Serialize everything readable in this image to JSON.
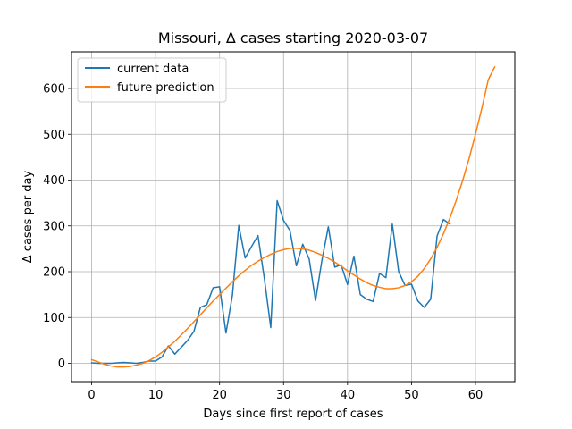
{
  "chart_data": {
    "type": "line",
    "title": "Missouri, Δ cases starting 2020-03-07",
    "xlabel": "Days since first report of cases",
    "ylabel": "Δ cases per day",
    "xlim": [
      -3.15,
      66.15
    ],
    "ylim": [
      -40,
      680
    ],
    "xticks": [
      0,
      10,
      20,
      30,
      40,
      50,
      60
    ],
    "yticks": [
      0,
      100,
      200,
      300,
      400,
      500,
      600
    ],
    "grid": true,
    "legend": {
      "placement": "top-left",
      "entries": [
        "current data",
        "future prediction"
      ]
    },
    "series": [
      {
        "name": "current data",
        "color": "#1f77b4",
        "x": [
          0,
          1,
          2,
          3,
          4,
          5,
          6,
          7,
          8,
          9,
          10,
          11,
          12,
          13,
          14,
          15,
          16,
          17,
          18,
          19,
          20,
          21,
          22,
          23,
          24,
          25,
          26,
          27,
          28,
          29,
          30,
          31,
          32,
          33,
          34,
          35,
          36,
          37,
          38,
          39,
          40,
          41,
          42,
          43,
          44,
          45,
          46,
          47,
          48,
          49,
          50,
          51,
          52,
          53,
          54,
          55,
          56
        ],
        "y": [
          1,
          0,
          0,
          0,
          1,
          2,
          1,
          0,
          2,
          5,
          5,
          14,
          38,
          20,
          35,
          50,
          70,
          122,
          128,
          165,
          167,
          66,
          148,
          301,
          230,
          255,
          279,
          185,
          78,
          355,
          312,
          290,
          213,
          260,
          228,
          137,
          225,
          298,
          210,
          215,
          172,
          234,
          150,
          140,
          135,
          196,
          187,
          304,
          200,
          170,
          173,
          136,
          122,
          140,
          278,
          314,
          304
        ]
      },
      {
        "name": "future prediction",
        "color": "#ff7f0e",
        "x": [
          0,
          1,
          2,
          3,
          4,
          5,
          6,
          7,
          8,
          9,
          10,
          11,
          12,
          13,
          14,
          15,
          16,
          17,
          18,
          19,
          20,
          21,
          22,
          23,
          24,
          25,
          26,
          27,
          28,
          29,
          30,
          31,
          32,
          33,
          34,
          35,
          36,
          37,
          38,
          39,
          40,
          41,
          42,
          43,
          44,
          45,
          46,
          47,
          48,
          49,
          50,
          51,
          52,
          53,
          54,
          55,
          56,
          57,
          58,
          59,
          60,
          61,
          62,
          63
        ],
        "y": [
          8,
          3,
          -2,
          -6,
          -8,
          -8,
          -7,
          -4,
          0,
          6,
          14,
          24,
          36,
          48,
          62,
          76,
          91,
          106,
          121,
          136,
          150,
          164,
          178,
          191,
          203,
          214,
          223,
          231,
          238,
          244,
          248,
          251,
          251,
          250,
          247,
          242,
          236,
          229,
          221,
          212,
          202,
          193,
          184,
          176,
          170,
          166,
          163,
          163,
          165,
          170,
          178,
          190,
          207,
          228,
          253,
          283,
          317,
          356,
          399,
          447,
          500,
          557,
          619,
          647
        ]
      }
    ]
  }
}
